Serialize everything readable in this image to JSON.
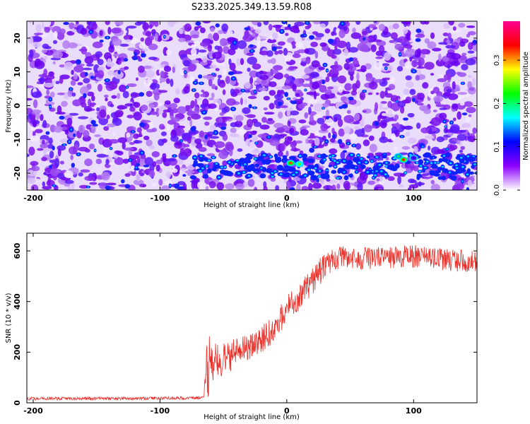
{
  "title": "S233.2025.349.13.59.R08",
  "chart_data": [
    {
      "type": "heatmap",
      "xlabel": "Height of straight line (km)",
      "ylabel": "Frequency (Hz)",
      "xlim": [
        -205,
        150
      ],
      "ylim": [
        -25,
        25
      ],
      "xticks": [
        -200,
        -100,
        0,
        100
      ],
      "yticks": [
        -20,
        -10,
        0,
        10,
        20
      ],
      "colorbar": {
        "label": "Normalized spectral amplitude",
        "range": [
          0.0,
          0.39
        ],
        "ticks": [
          0.0,
          0.1,
          0.2,
          0.3
        ],
        "colormap": [
          "#ffffff",
          "#8c00ff",
          "#0000ff",
          "#00ffff",
          "#00ff00",
          "#ffff00",
          "#ff0000",
          "#ff0090"
        ]
      },
      "background_level": 0.02,
      "signal_band": {
        "frequency_hz": -17,
        "x_start_km": -75,
        "x_end_km": 150
      },
      "hot_spots": [
        {
          "x": 3,
          "y": -17,
          "value": 0.32
        },
        {
          "x": 10,
          "y": -17.3,
          "value": 0.24
        },
        {
          "x": 92,
          "y": -16,
          "value": 0.33
        },
        {
          "x": 88,
          "y": -15,
          "value": 0.2
        },
        {
          "x": 100,
          "y": -15.5,
          "value": 0.1
        }
      ]
    },
    {
      "type": "line",
      "xlabel": "Height of straight line (km)",
      "ylabel": "SNR (10 * v/v)",
      "xlim": [
        -205,
        150
      ],
      "ylim": [
        0,
        670
      ],
      "xticks": [
        -200,
        -100,
        0,
        100
      ],
      "yticks": [
        0,
        200,
        400,
        600
      ],
      "color": "#e8302a",
      "series": [
        {
          "x": [
            -205,
            -150,
            -100,
            -65,
            -62,
            -60,
            -57,
            -55,
            -52,
            -50,
            -47,
            -45,
            -40,
            -35,
            -30,
            -25,
            -20,
            -15,
            -10,
            -5,
            -2,
            0,
            2,
            5,
            10,
            15,
            20,
            25,
            30,
            35,
            40,
            45,
            50,
            60,
            70,
            80,
            90,
            100,
            110,
            120,
            130,
            140,
            150
          ],
          "y": [
            16,
            17,
            18,
            20,
            90,
            150,
            160,
            175,
            170,
            180,
            185,
            190,
            200,
            210,
            220,
            230,
            250,
            270,
            300,
            330,
            350,
            380,
            380,
            400,
            420,
            450,
            480,
            510,
            540,
            560,
            570,
            580,
            575,
            570,
            575,
            570,
            575,
            580,
            575,
            570,
            565,
            560,
            555
          ]
        }
      ]
    }
  ]
}
